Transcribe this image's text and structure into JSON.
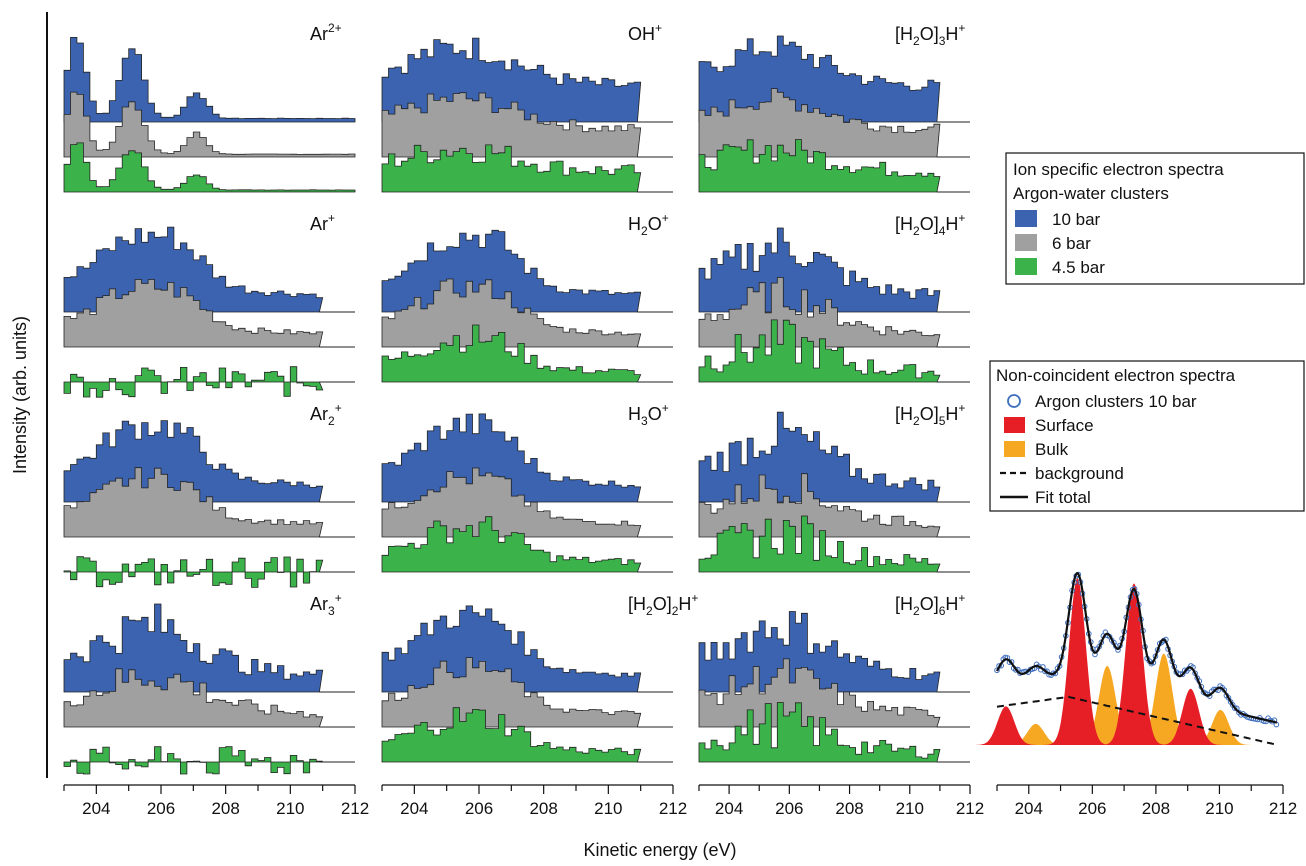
{
  "chart_data": {
    "type": "area",
    "ylabel": "Intensity (arb. units)",
    "xlabel": "Kinetic energy (eV)",
    "xlim": [
      203,
      212
    ],
    "xticks": [
      "204",
      "206",
      "208",
      "210",
      "212"
    ],
    "series_names": [
      "10 bar",
      "6 bar",
      "4.5 bar"
    ],
    "colors": {
      "s10": "#3b63b0",
      "s6": "#a0a0a0",
      "s45": "#3cb34a",
      "surface": "#e61e25",
      "bulk": "#f7a823",
      "fit": "#111111",
      "data": "#3f6fbf"
    },
    "legend_ion": {
      "title1": "Ion specific electron spectra",
      "title2": "Argon-water clusters",
      "items": [
        "10 bar",
        "6 bar",
        "4.5 bar"
      ]
    },
    "legend_noncoinc": {
      "title": "Non-coincident electron spectra",
      "items": [
        "Argon clusters 10 bar",
        "Surface",
        "Bulk",
        "background",
        "Fit total"
      ]
    },
    "panels": [
      {
        "base": "Ar",
        "sub": "",
        "sup": "2+",
        "tail": "",
        "shape": "ar2p"
      },
      {
        "base": "OH",
        "sub": "",
        "sup": "+",
        "tail": "",
        "shape": "broad"
      },
      {
        "base": "[H",
        "sub": "2",
        "sup": "",
        "tail": "O]",
        "sub2": "3",
        "tail2": "H",
        "sup2": "+",
        "shape": "broad"
      },
      {
        "base": "Ar",
        "sub": "",
        "sup": "+",
        "tail": "",
        "shape": "double"
      },
      {
        "base": "H",
        "sub": "2",
        "sup": "",
        "tail": "O",
        "sup2": "+",
        "shape": "double"
      },
      {
        "base": "[H",
        "sub": "2",
        "sup": "",
        "tail": "O]",
        "sub2": "4",
        "tail2": "H",
        "sup2": "+",
        "shape": "noisy"
      },
      {
        "base": "Ar",
        "sub": "2",
        "sup": "+",
        "tail": "",
        "shape": "double"
      },
      {
        "base": "H",
        "sub": "3",
        "sup": "",
        "tail": "O",
        "sup2": "+",
        "shape": "double"
      },
      {
        "base": "[H",
        "sub": "2",
        "sup": "",
        "tail": "O]",
        "sub2": "5",
        "tail2": "H",
        "sup2": "+",
        "shape": "noisy"
      },
      {
        "base": "Ar",
        "sub": "3",
        "sup": "+",
        "tail": "",
        "shape": "noisy"
      },
      {
        "base": "[H",
        "sub": "2",
        "sup": "",
        "tail": "O]",
        "sub2": "2",
        "tail2": "H",
        "sup2": "+",
        "shape": "double"
      },
      {
        "base": "[H",
        "sub": "2",
        "sup": "",
        "tail": "O]",
        "sub2": "6",
        "tail2": "H",
        "sup2": "+",
        "shape": "noisy"
      }
    ],
    "fit": {
      "surface_peaks": [
        [
          202.9,
          0.22
        ],
        [
          205.3,
          0.95
        ],
        [
          207.2,
          0.92
        ],
        [
          209.1,
          0.32
        ]
      ],
      "bulk_peaks": [
        [
          203.9,
          0.12
        ],
        [
          206.3,
          0.45
        ],
        [
          208.2,
          0.52
        ],
        [
          210.1,
          0.2
        ]
      ]
    }
  }
}
